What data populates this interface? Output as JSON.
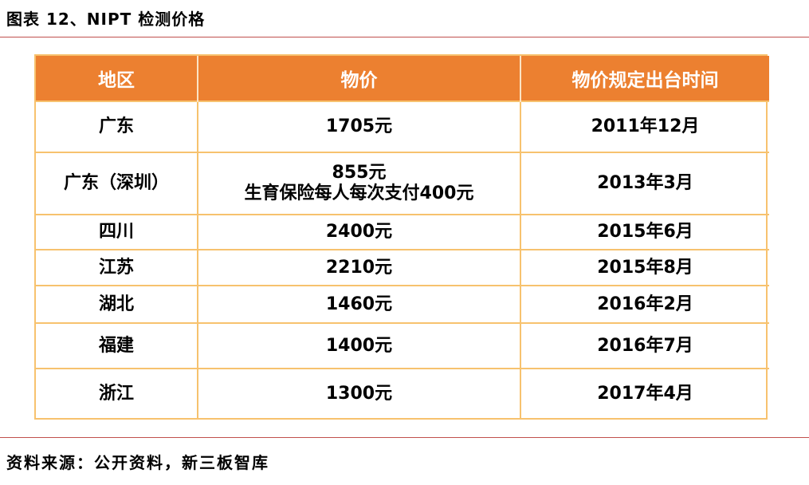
{
  "figure_title": "图表 12、NIPT 检测价格",
  "table": {
    "headers": [
      "地区",
      "物价",
      "物价规定出台时间"
    ],
    "rows": [
      {
        "region": "广东",
        "price_lines": [
          "1705元"
        ],
        "date": "2011年12月"
      },
      {
        "region": "广东（深圳）",
        "price_lines": [
          "855元",
          "生育保险每人每次支付400元"
        ],
        "date": "2013年3月"
      },
      {
        "region": "四川",
        "price_lines": [
          "2400元"
        ],
        "date": "2015年6月"
      },
      {
        "region": "江苏",
        "price_lines": [
          "2210元"
        ],
        "date": "2015年8月"
      },
      {
        "region": "湖北",
        "price_lines": [
          "1460元"
        ],
        "date": "2016年2月"
      },
      {
        "region": "福建",
        "price_lines": [
          "1400元"
        ],
        "date": "2016年7月"
      },
      {
        "region": "浙江",
        "price_lines": [
          "1300元"
        ],
        "date": "2017年4月"
      }
    ]
  },
  "source_note": "资料来源：公开资料，新三板智库",
  "colors": {
    "header_bg": "#ec8030",
    "border": "#f7c26e",
    "rule": "#c0504d"
  }
}
